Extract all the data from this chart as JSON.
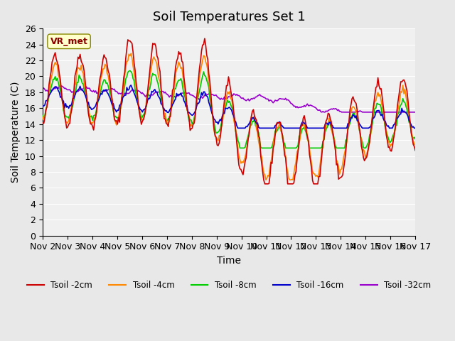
{
  "title": "Soil Temperatures Set 1",
  "xlabel": "Time",
  "ylabel": "Soil Temperature (C)",
  "ylim": [
    0,
    26
  ],
  "yticks": [
    0,
    2,
    4,
    6,
    8,
    10,
    12,
    14,
    16,
    18,
    20,
    22,
    24,
    26
  ],
  "x_labels": [
    "Nov 2",
    "Nov 3",
    "Nov 4",
    "Nov 5",
    "Nov 6",
    "Nov 7",
    "Nov 8",
    "Nov 9",
    "Nov 10",
    "Nov 11",
    "Nov 12",
    "Nov 13",
    "Nov 14",
    "Nov 15",
    "Nov 16",
    "Nov 17"
  ],
  "legend_labels": [
    "Tsoil -2cm",
    "Tsoil -4cm",
    "Tsoil -8cm",
    "Tsoil -16cm",
    "Tsoil -32cm"
  ],
  "colors": [
    "#cc0000",
    "#ff8800",
    "#00cc00",
    "#0000cc",
    "#9900cc"
  ],
  "annotation_text": "VR_met",
  "annotation_color": "#8b0000",
  "annotation_bg": "#ffffcc",
  "background_color": "#e8e8e8",
  "plot_bg": "#f0f0f0",
  "title_fontsize": 13,
  "axis_fontsize": 10,
  "tick_fontsize": 9
}
